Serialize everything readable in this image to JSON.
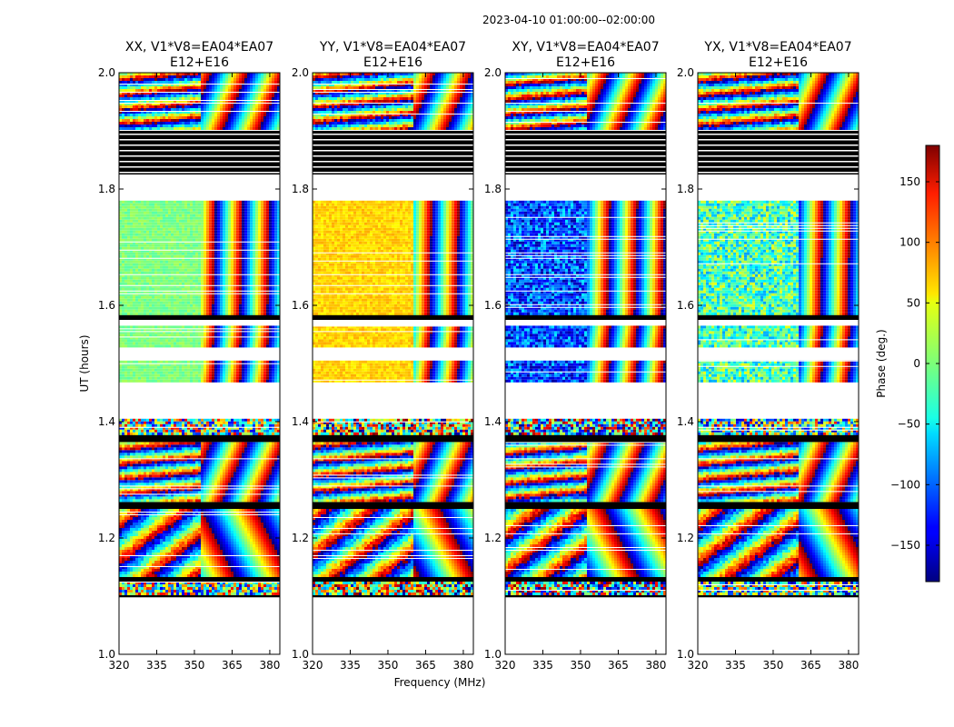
{
  "chart_data": {
    "type": "heatmap",
    "suptitle": "2023-04-10  01:00:00--02:00:00",
    "xlabel": "Frequency (MHz)",
    "ylabel": "UT (hours)",
    "xlim": [
      320,
      384
    ],
    "ylim": [
      1.0,
      2.0
    ],
    "xticks": [
      320,
      335,
      350,
      365,
      380
    ],
    "yticks": [
      1.0,
      1.2,
      1.4,
      1.6,
      1.8,
      2.0
    ],
    "ytick_labels": [
      "1.0",
      "1.2",
      "1.4",
      "1.6",
      "1.8",
      "2.0"
    ],
    "panels": [
      {
        "title_line1": "XX, V1*V8=EA04*EA07",
        "title_line2": "E12+E16",
        "polarization": "XX",
        "base_phase_deg": 0
      },
      {
        "title_line1": "YY, V1*V8=EA04*EA07",
        "title_line2": "E12+E16",
        "polarization": "YY",
        "base_phase_deg": 60
      },
      {
        "title_line1": "XY, V1*V8=EA04*EA07",
        "title_line2": "E12+E16",
        "polarization": "XY",
        "base_phase_deg": -110
      },
      {
        "title_line1": "YX, V1*V8=EA04*EA07",
        "title_line2": "E12+E16",
        "polarization": "YX",
        "base_phase_deg": -20
      }
    ],
    "time_segments": [
      {
        "start": 1.098,
        "end": 1.105,
        "kind": "flagged"
      },
      {
        "start": 1.105,
        "end": 1.125,
        "kind": "data",
        "fringe": "noisy"
      },
      {
        "start": 1.125,
        "end": 1.135,
        "kind": "flagged"
      },
      {
        "start": 1.135,
        "end": 1.25,
        "kind": "data",
        "fringe": "tilted"
      },
      {
        "start": 1.25,
        "end": 1.262,
        "kind": "flagged"
      },
      {
        "start": 1.262,
        "end": 1.365,
        "kind": "data",
        "fringe": "banded"
      },
      {
        "start": 1.365,
        "end": 1.38,
        "kind": "flagged"
      },
      {
        "start": 1.38,
        "end": 1.405,
        "kind": "data",
        "fringe": "noisy"
      },
      {
        "start": 1.47,
        "end": 1.505,
        "kind": "data",
        "fringe": "flat"
      },
      {
        "start": 1.53,
        "end": 1.565,
        "kind": "data",
        "fringe": "flat"
      },
      {
        "start": 1.575,
        "end": 1.585,
        "kind": "flagged"
      },
      {
        "start": 1.585,
        "end": 1.78,
        "kind": "data",
        "fringe": "flat"
      },
      {
        "start": 1.825,
        "end": 1.9,
        "kind": "flagged_lines"
      },
      {
        "start": 1.905,
        "end": 2.0,
        "kind": "data",
        "fringe": "banded"
      }
    ],
    "colorbar": {
      "label": "Phase (deg.)",
      "range": [
        -180,
        180
      ],
      "ticks": [
        150,
        100,
        50,
        0,
        -50,
        -100,
        -150
      ],
      "tick_labels": [
        "150",
        "100",
        "50",
        "0",
        "−50",
        "−100",
        "−150"
      ],
      "colormap": "jet"
    }
  }
}
